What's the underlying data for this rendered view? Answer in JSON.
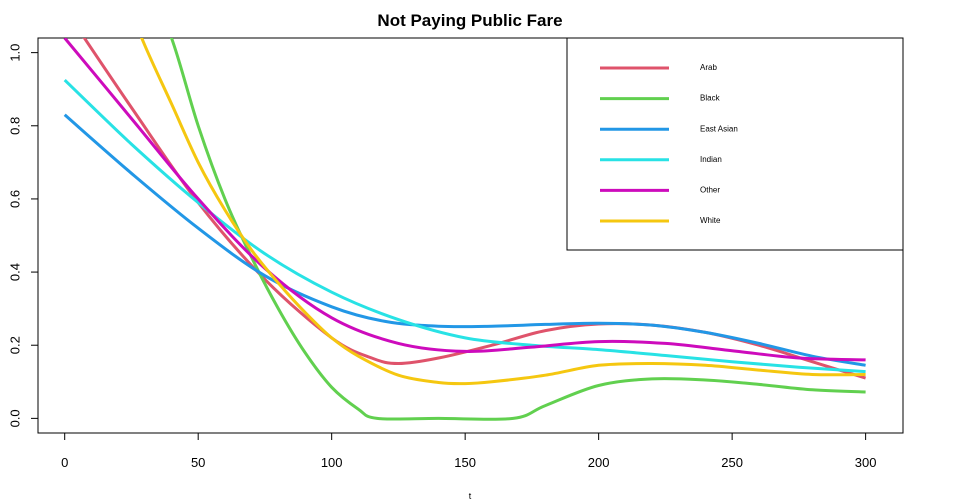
{
  "chart_data": {
    "type": "line",
    "title": "Not Paying Public Fare",
    "xlabel": "t",
    "ylabel": "",
    "xlim": [
      -10,
      314
    ],
    "ylim": [
      -0.04,
      1.04
    ],
    "x_ticks": [
      0,
      50,
      100,
      150,
      200,
      250,
      300
    ],
    "x_tick_labels": [
      "0",
      "50",
      "100",
      "150",
      "200",
      "250",
      "300"
    ],
    "y_ticks": [
      0.0,
      0.2,
      0.4,
      0.6,
      0.8,
      1.0
    ],
    "y_tick_labels": [
      "0.0",
      "0.2",
      "0.4",
      "0.6",
      "0.8",
      "1.0"
    ],
    "grid": false,
    "legend_position": "top-right",
    "series": [
      {
        "name": "Arab",
        "color": "#DF536B",
        "x": [
          0,
          25,
          50,
          75,
          100,
          115,
          125,
          140,
          160,
          180,
          200,
          220,
          240,
          260,
          280,
          300
        ],
        "y": [
          1.12,
          0.85,
          0.59,
          0.38,
          0.22,
          0.165,
          0.15,
          0.165,
          0.2,
          0.24,
          0.258,
          0.255,
          0.235,
          0.2,
          0.155,
          0.11
        ]
      },
      {
        "name": "Black",
        "color": "#61D04F",
        "x": [
          30,
          40,
          50,
          60,
          70,
          80,
          90,
          100,
          110,
          117,
          140,
          168,
          180,
          200,
          220,
          240,
          260,
          280,
          300
        ],
        "y": [
          1.2,
          1.04,
          0.8,
          0.6,
          0.44,
          0.3,
          0.18,
          0.085,
          0.025,
          0.0,
          0.0,
          0.0,
          0.035,
          0.09,
          0.108,
          0.105,
          0.093,
          0.078,
          0.072
        ]
      },
      {
        "name": "East Asian",
        "color": "#2297E6",
        "x": [
          0,
          25,
          50,
          75,
          100,
          120,
          140,
          160,
          180,
          200,
          220,
          240,
          260,
          280,
          300
        ],
        "y": [
          0.83,
          0.67,
          0.52,
          0.39,
          0.305,
          0.265,
          0.252,
          0.252,
          0.257,
          0.26,
          0.255,
          0.235,
          0.205,
          0.17,
          0.145
        ]
      },
      {
        "name": "Indian",
        "color": "#28E2E5",
        "x": [
          0,
          25,
          50,
          75,
          100,
          125,
          150,
          175,
          200,
          225,
          250,
          275,
          300
        ],
        "y": [
          0.925,
          0.75,
          0.59,
          0.45,
          0.345,
          0.27,
          0.22,
          0.2,
          0.188,
          0.172,
          0.155,
          0.14,
          0.128
        ]
      },
      {
        "name": "Other",
        "color": "#CD0BBC",
        "x": [
          0,
          25,
          50,
          75,
          100,
          125,
          150,
          175,
          200,
          225,
          250,
          275,
          300
        ],
        "y": [
          1.04,
          0.82,
          0.6,
          0.41,
          0.275,
          0.205,
          0.183,
          0.195,
          0.21,
          0.205,
          0.185,
          0.165,
          0.16
        ]
      },
      {
        "name": "White",
        "color": "#F5C710",
        "x": [
          20,
          30,
          40,
          50,
          60,
          70,
          80,
          90,
          100,
          110,
          125,
          140,
          150,
          160,
          180,
          200,
          220,
          240,
          260,
          280,
          300
        ],
        "y": [
          1.2,
          1.02,
          0.86,
          0.7,
          0.57,
          0.46,
          0.37,
          0.29,
          0.22,
          0.17,
          0.118,
          0.098,
          0.095,
          0.1,
          0.118,
          0.145,
          0.15,
          0.145,
          0.132,
          0.12,
          0.12
        ]
      }
    ]
  }
}
